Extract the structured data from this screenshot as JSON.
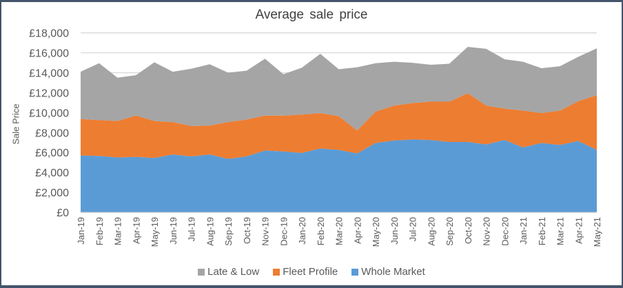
{
  "chart_data": {
    "type": "area",
    "stacked": true,
    "title": "Average sale price",
    "xlabel": "",
    "ylabel": "Sale Price",
    "ylim": [
      0,
      18000
    ],
    "yticks": [
      0,
      2000,
      4000,
      6000,
      8000,
      10000,
      12000,
      14000,
      16000,
      18000
    ],
    "ytick_labels": [
      "£0",
      "£2,000",
      "£4,000",
      "£6,000",
      "£8,000",
      "£10,000",
      "£12,000",
      "£14,000",
      "£16,000",
      "£18,000"
    ],
    "grid": true,
    "legend_position": "bottom",
    "categories": [
      "Jan-19",
      "Feb-19",
      "Mar-19",
      "Apr-19",
      "May-19",
      "Jun-19",
      "Jul-19",
      "Aug-19",
      "Sep-19",
      "Oct-19",
      "Nov-19",
      "Dec-19",
      "Jan-20",
      "Feb-20",
      "Mar-20",
      "Apr-20",
      "May-20",
      "Jun-20",
      "Jul-20",
      "Aug-20",
      "Sep-20",
      "Oct-20",
      "Nov-20",
      "Dec-20",
      "Jan-21",
      "Feb-21",
      "Mar-21",
      "Apr-21",
      "May-21"
    ],
    "series": [
      {
        "name": "Whole Market",
        "color": "#5b9bd5",
        "values": [
          5700,
          5650,
          5500,
          5550,
          5450,
          5800,
          5600,
          5800,
          5350,
          5600,
          6200,
          6100,
          5950,
          6400,
          6250,
          5900,
          6950,
          7200,
          7300,
          7250,
          7050,
          7050,
          6800,
          7250,
          6500,
          6950,
          6750,
          7150,
          6250
        ]
      },
      {
        "name": "Fleet Profile",
        "color": "#ed7d31",
        "values": [
          3650,
          3600,
          3650,
          4150,
          3700,
          3250,
          3050,
          2900,
          3700,
          3700,
          3500,
          3600,
          3850,
          3550,
          3400,
          2300,
          3150,
          3500,
          3650,
          3850,
          4050,
          4900,
          3900,
          3150,
          3700,
          3000,
          3450,
          4000,
          5500
        ]
      },
      {
        "name": "Late & Low",
        "color": "#a5a5a5",
        "values": [
          4750,
          5700,
          4350,
          4050,
          5900,
          5050,
          5750,
          6150,
          4950,
          4900,
          5700,
          4150,
          4700,
          5950,
          4700,
          6350,
          4850,
          4400,
          4050,
          3700,
          3800,
          4650,
          5700,
          4950,
          4900,
          4500,
          4450,
          4450,
          4700
        ]
      }
    ],
    "legend_order": [
      "Late & Low",
      "Fleet Profile",
      "Whole Market"
    ]
  }
}
